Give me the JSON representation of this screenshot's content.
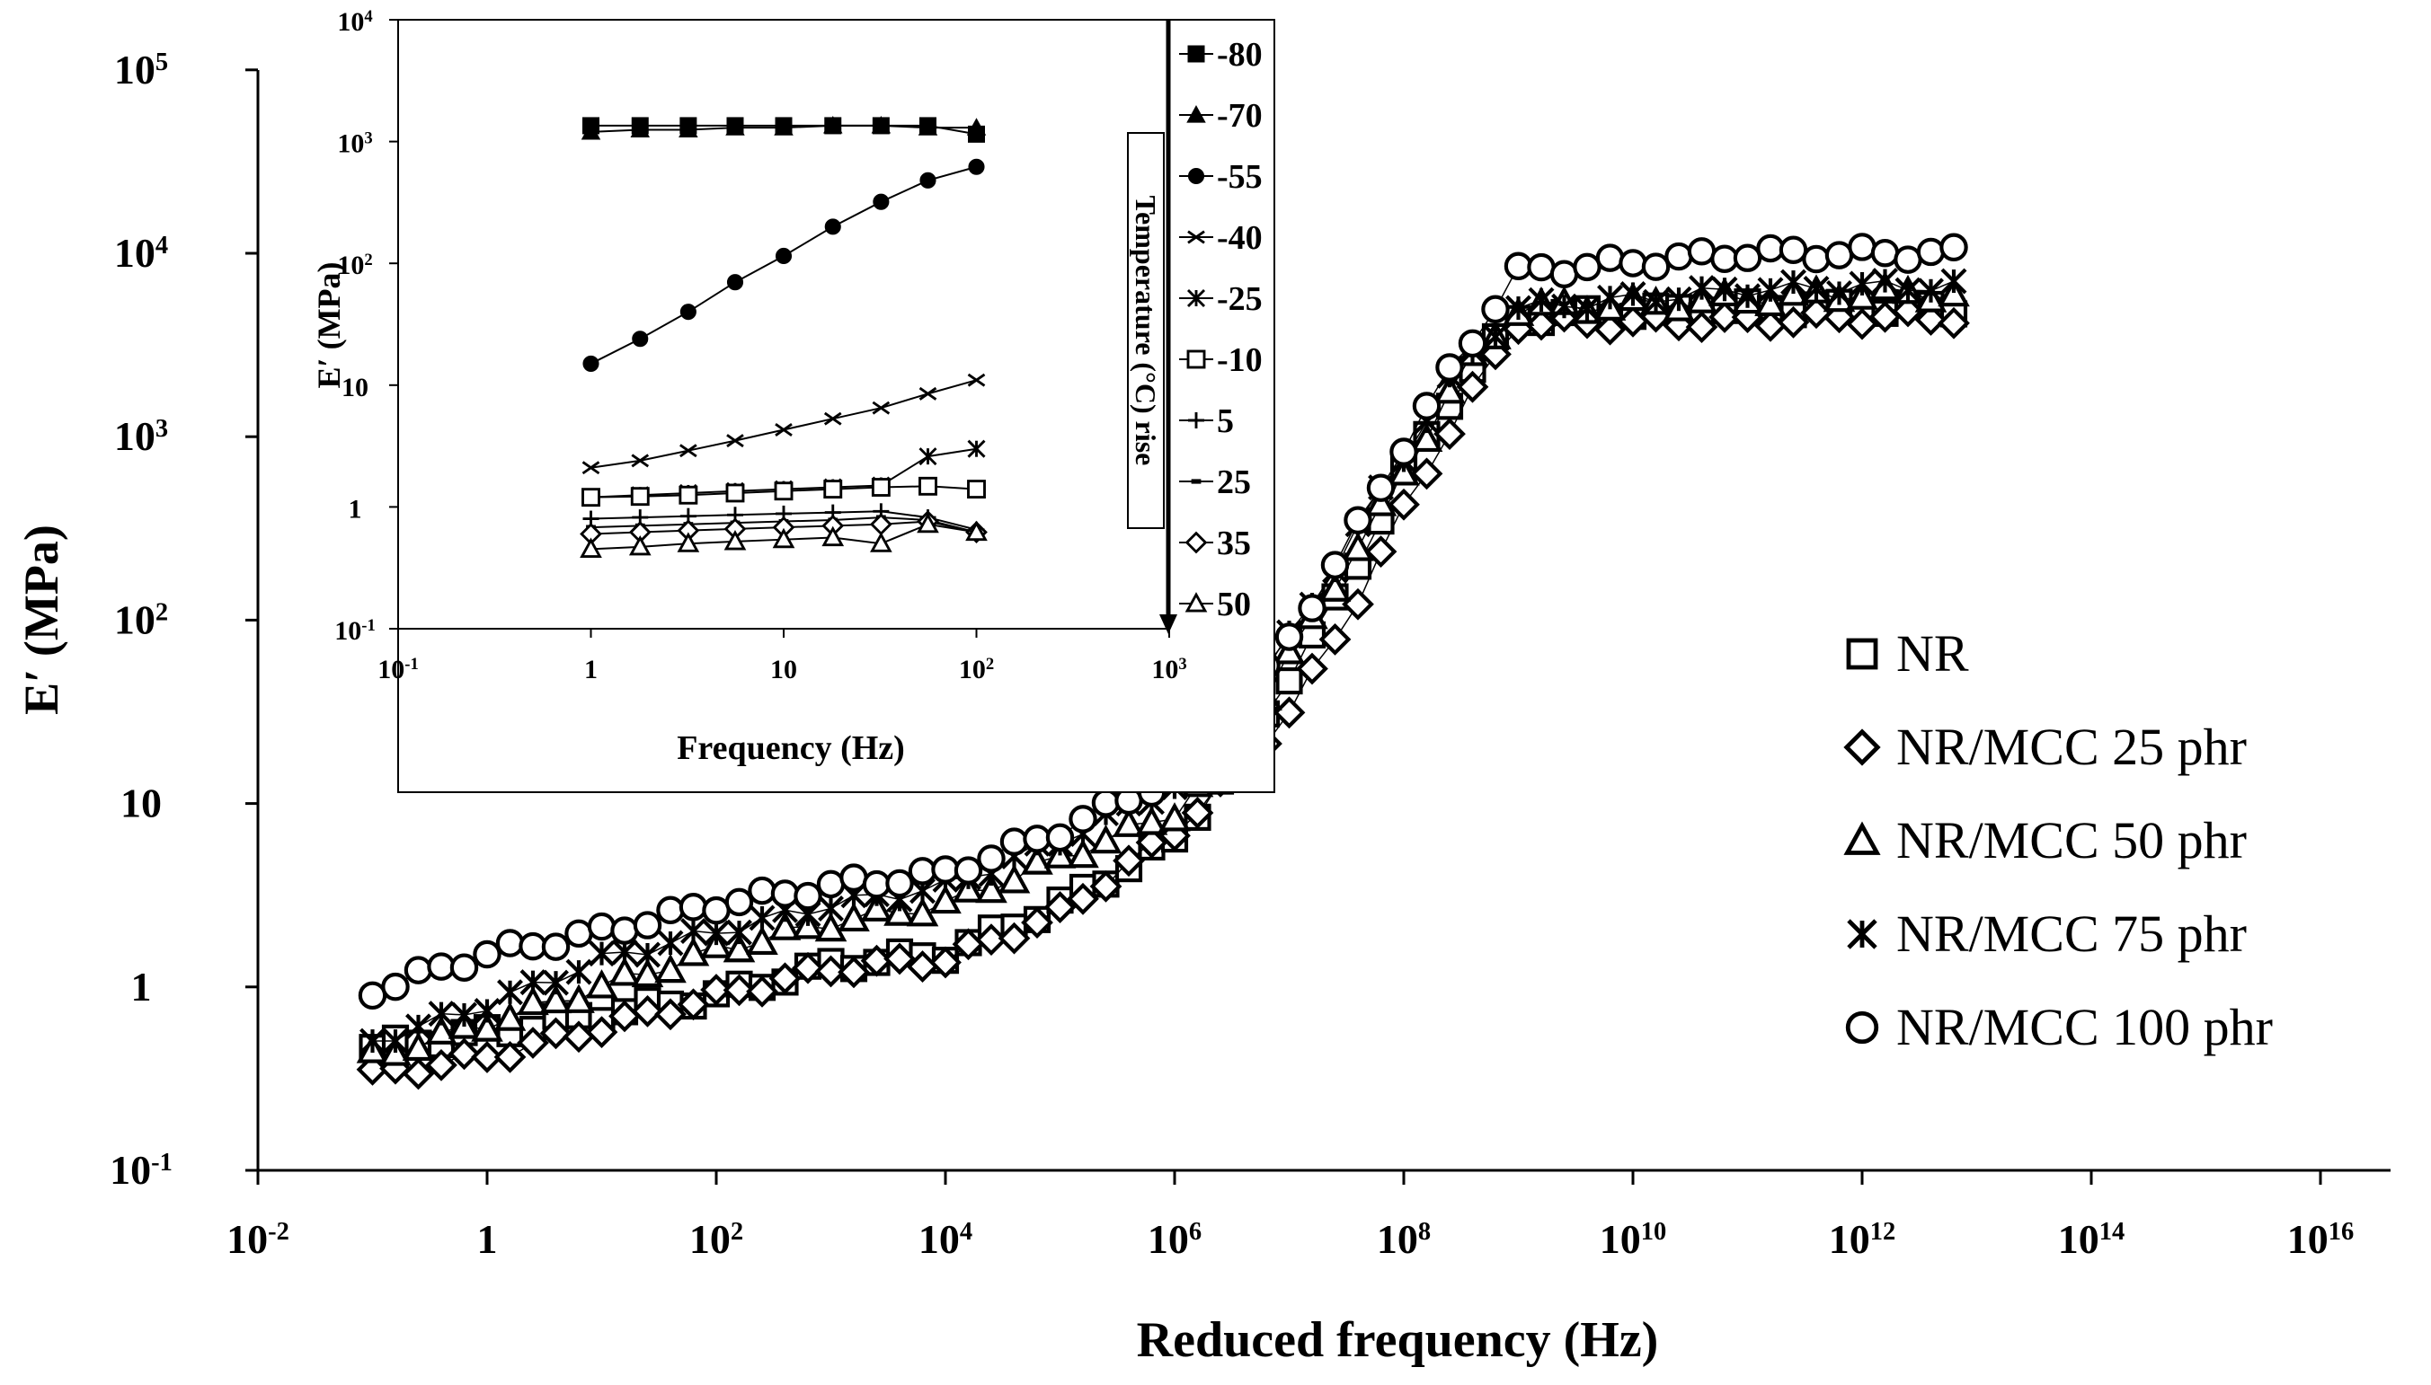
{
  "chart_data": [
    {
      "type": "scatter",
      "title": "",
      "xlabel": "Reduced frequency (Hz)",
      "ylabel": "E′ (MPa)",
      "xscale": "log",
      "yscale": "log",
      "xlim_exp": [
        -2,
        16
      ],
      "ylim_exp": [
        -1,
        5
      ],
      "x_ticks": [
        {
          "exp": -2,
          "base": "10",
          "sup": "-2"
        },
        {
          "exp": 0,
          "base": "1",
          "sup": ""
        },
        {
          "exp": 2,
          "base": "10",
          "sup": "2"
        },
        {
          "exp": 4,
          "base": "10",
          "sup": "4"
        },
        {
          "exp": 6,
          "base": "10",
          "sup": "6"
        },
        {
          "exp": 8,
          "base": "10",
          "sup": "8"
        },
        {
          "exp": 10,
          "base": "10",
          "sup": "10"
        },
        {
          "exp": 12,
          "base": "10",
          "sup": "12"
        },
        {
          "exp": 14,
          "base": "10",
          "sup": "14"
        },
        {
          "exp": 16,
          "base": "10",
          "sup": "16"
        }
      ],
      "y_ticks": [
        {
          "exp": -1,
          "base": "10",
          "sup": "-1"
        },
        {
          "exp": 0,
          "base": "1",
          "sup": ""
        },
        {
          "exp": 1,
          "base": "10",
          "sup": ""
        },
        {
          "exp": 2,
          "base": "10",
          "sup": "2"
        },
        {
          "exp": 3,
          "base": "10",
          "sup": "3"
        },
        {
          "exp": 4,
          "base": "10",
          "sup": "4"
        },
        {
          "exp": 5,
          "base": "10",
          "sup": "5"
        }
      ],
      "legend_position": "right",
      "series": [
        {
          "name": "NR",
          "marker": "square",
          "x_start_exp": -1,
          "x_end_exp": 12.8,
          "n_points": 70,
          "curve": [
            [
              -1,
              -0.33
            ],
            [
              0,
              -0.25
            ],
            [
              1,
              -0.15
            ],
            [
              2,
              -0.05
            ],
            [
              3,
              0.12
            ],
            [
              4,
              0.18
            ],
            [
              5,
              0.45
            ],
            [
              6,
              0.8
            ],
            [
              6.5,
              1.2
            ],
            [
              7,
              1.7
            ],
            [
              7.5,
              2.2
            ],
            [
              8,
              2.8
            ],
            [
              8.5,
              3.3
            ],
            [
              9,
              3.65
            ],
            [
              10,
              3.68
            ],
            [
              11,
              3.7
            ],
            [
              12,
              3.7
            ],
            [
              12.8,
              3.7
            ]
          ]
        },
        {
          "name": "NR/MCC 25 phr",
          "marker": "diamond",
          "x_start_exp": -1,
          "x_end_exp": 12.8,
          "n_points": 70,
          "curve": [
            [
              -1,
              -0.48
            ],
            [
              0,
              -0.38
            ],
            [
              1,
              -0.22
            ],
            [
              2,
              -0.05
            ],
            [
              3,
              0.1
            ],
            [
              4,
              0.15
            ],
            [
              5,
              0.4
            ],
            [
              6,
              0.85
            ],
            [
              6.5,
              1.15
            ],
            [
              7,
              1.5
            ],
            [
              7.5,
              2.0
            ],
            [
              8,
              2.6
            ],
            [
              8.5,
              3.15
            ],
            [
              9,
              3.62
            ],
            [
              10,
              3.62
            ],
            [
              11,
              3.63
            ],
            [
              12,
              3.65
            ],
            [
              12.8,
              3.65
            ]
          ]
        },
        {
          "name": "NR/MCC 50 phr",
          "marker": "triangle",
          "x_start_exp": -1,
          "x_end_exp": 12.8,
          "n_points": 70,
          "curve": [
            [
              -1,
              -0.38
            ],
            [
              0,
              -0.2
            ],
            [
              1,
              0.0
            ],
            [
              2,
              0.2
            ],
            [
              3,
              0.35
            ],
            [
              4,
              0.45
            ],
            [
              5,
              0.7
            ],
            [
              6,
              0.95
            ],
            [
              6.5,
              1.3
            ],
            [
              7,
              1.8
            ],
            [
              7.5,
              2.3
            ],
            [
              8,
              2.8
            ],
            [
              8.5,
              3.35
            ],
            [
              9,
              3.7
            ],
            [
              10,
              3.72
            ],
            [
              11,
              3.75
            ],
            [
              12,
              3.78
            ],
            [
              12.8,
              3.78
            ]
          ]
        },
        {
          "name": "NR/MCC 75 phr",
          "marker": "asterisk",
          "x_start_exp": -1,
          "x_end_exp": 12.8,
          "n_points": 70,
          "curve": [
            [
              -1,
              -0.3
            ],
            [
              0,
              -0.1
            ],
            [
              1,
              0.15
            ],
            [
              2,
              0.3
            ],
            [
              3,
              0.45
            ],
            [
              4,
              0.55
            ],
            [
              5,
              0.8
            ],
            [
              6,
              1.1
            ],
            [
              6.5,
              1.45
            ],
            [
              7,
              1.9
            ],
            [
              7.5,
              2.4
            ],
            [
              8,
              2.9
            ],
            [
              8.5,
              3.4
            ],
            [
              9,
              3.7
            ],
            [
              10,
              3.75
            ],
            [
              11,
              3.8
            ],
            [
              12,
              3.82
            ],
            [
              12.8,
              3.82
            ]
          ]
        },
        {
          "name": "NR/MCC 100 phr",
          "marker": "circle",
          "x_start_exp": -1,
          "x_end_exp": 12.8,
          "n_points": 70,
          "curve": [
            [
              -1,
              -0.02
            ],
            [
              0,
              0.18
            ],
            [
              1,
              0.3
            ],
            [
              2,
              0.45
            ],
            [
              3,
              0.55
            ],
            [
              4,
              0.62
            ],
            [
              5,
              0.85
            ],
            [
              6,
              1.15
            ],
            [
              6.5,
              1.45
            ],
            [
              7,
              1.9
            ],
            [
              7.5,
              2.4
            ],
            [
              8,
              2.95
            ],
            [
              8.4,
              3.35
            ],
            [
              9,
              3.9
            ],
            [
              10,
              3.95
            ],
            [
              11,
              4.0
            ],
            [
              12,
              4.0
            ],
            [
              12.8,
              4.0
            ]
          ]
        }
      ]
    },
    {
      "type": "line",
      "title": "",
      "xlabel": "Frequency (Hz)",
      "ylabel": "E′ (MPa)",
      "xscale": "log",
      "yscale": "log",
      "xlim_exp": [
        -1,
        3
      ],
      "ylim_exp": [
        -1,
        4
      ],
      "x_ticks": [
        {
          "exp": -1,
          "base": "10",
          "sup": "-1"
        },
        {
          "exp": 0,
          "base": "1",
          "sup": ""
        },
        {
          "exp": 1,
          "base": "10",
          "sup": ""
        },
        {
          "exp": 2,
          "base": "10",
          "sup": "2"
        },
        {
          "exp": 3,
          "base": "10",
          "sup": "3"
        }
      ],
      "y_ticks": [
        {
          "exp": -1,
          "base": "10",
          "sup": "-1"
        },
        {
          "exp": 0,
          "base": "1",
          "sup": ""
        },
        {
          "exp": 1,
          "base": "10",
          "sup": ""
        },
        {
          "exp": 2,
          "base": "10",
          "sup": "2"
        },
        {
          "exp": 3,
          "base": "10",
          "sup": "3"
        },
        {
          "exp": 4,
          "base": "10",
          "sup": "4"
        }
      ],
      "annotation": "Temperature (°C) rise",
      "frequencies": [
        1,
        1.8,
        3.2,
        5.6,
        10,
        18,
        32,
        56,
        100
      ],
      "series": [
        {
          "name": "-80",
          "marker": "filled-square",
          "values": [
            1350,
            1350,
            1350,
            1350,
            1350,
            1350,
            1350,
            1350,
            1150
          ]
        },
        {
          "name": "-70",
          "marker": "filled-triangle",
          "values": [
            1200,
            1250,
            1250,
            1300,
            1300,
            1350,
            1350,
            1300,
            1300
          ]
        },
        {
          "name": "-55",
          "marker": "filled-circle",
          "values": [
            15,
            24,
            40,
            70,
            115,
            200,
            320,
            480,
            620
          ]
        },
        {
          "name": "-40",
          "marker": "x",
          "values": [
            2.1,
            2.4,
            2.9,
            3.5,
            4.3,
            5.3,
            6.5,
            8.5,
            11
          ]
        },
        {
          "name": "-25",
          "marker": "asterisk",
          "values": [
            1.2,
            1.25,
            1.3,
            1.35,
            1.4,
            1.45,
            1.5,
            2.6,
            3.0
          ]
        },
        {
          "name": "-10",
          "marker": "open-square",
          "values": [
            1.2,
            1.22,
            1.25,
            1.3,
            1.35,
            1.4,
            1.45,
            1.48,
            1.4
          ]
        },
        {
          "name": "5",
          "marker": "plus",
          "values": [
            0.8,
            0.82,
            0.84,
            0.86,
            0.88,
            0.9,
            0.92,
            0.82,
            0.65
          ]
        },
        {
          "name": "25",
          "marker": "dash",
          "values": [
            0.68,
            0.7,
            0.72,
            0.74,
            0.76,
            0.78,
            0.82,
            0.78,
            0.62
          ]
        },
        {
          "name": "35",
          "marker": "open-diamond",
          "values": [
            0.6,
            0.62,
            0.64,
            0.66,
            0.68,
            0.7,
            0.72,
            0.76,
            0.62
          ]
        },
        {
          "name": "50",
          "marker": "open-triangle",
          "values": [
            0.45,
            0.47,
            0.5,
            0.52,
            0.54,
            0.56,
            0.5,
            0.72,
            0.62
          ]
        }
      ]
    }
  ]
}
